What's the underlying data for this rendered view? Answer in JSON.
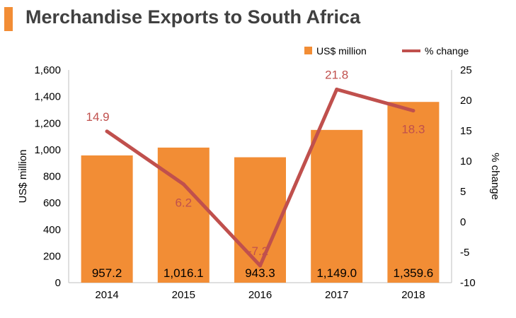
{
  "title": "Merchandise Exports to South Africa",
  "colors": {
    "accent": "#f28d35",
    "bar": "#f28d35",
    "line": "#c0504d",
    "label_line": "#c0504d"
  },
  "chart_data": {
    "type": "bar+line",
    "categories": [
      "2014",
      "2015",
      "2016",
      "2017",
      "2018"
    ],
    "series": [
      {
        "name": "US$ million",
        "type": "bar",
        "axis": "left",
        "values": [
          957.2,
          1016.1,
          943.3,
          1149.0,
          1359.6
        ],
        "labels": [
          "957.2",
          "1,016.1",
          "943.3",
          "1,149.0",
          "1,359.6"
        ]
      },
      {
        "name": "% change",
        "type": "line",
        "axis": "right",
        "values": [
          14.9,
          6.2,
          -7.2,
          21.8,
          18.3
        ],
        "labels": [
          "14.9",
          "6.2",
          "-7.2",
          "21.8",
          "18.3"
        ]
      }
    ],
    "ylabel_left": "US$ million",
    "ylabel_right": "% change",
    "ylim_left": [
      0,
      1600
    ],
    "ylim_right": [
      -10,
      25
    ],
    "yticks_left": [
      "0",
      "200",
      "400",
      "600",
      "800",
      "1,000",
      "1,200",
      "1,400",
      "1,600"
    ],
    "yticks_right": [
      "-10",
      "-5",
      "0",
      "5",
      "10",
      "15",
      "20",
      "25"
    ],
    "legend": "top-right",
    "grid": false
  }
}
